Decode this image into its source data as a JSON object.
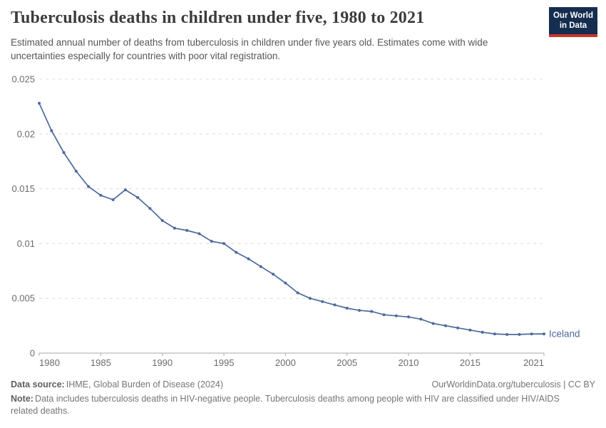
{
  "header": {
    "title": "Tuberculosis deaths in children under five, 1980 to 2021",
    "subtitle": "Estimated annual number of deaths from tuberculosis in children under five years old. Estimates come with wide uncertainties especially for countries with poor vital registration.",
    "logo": {
      "line1": "Our World",
      "line2": "in Data",
      "bg_color": "#152d4f",
      "stripe_color": "#cc342b"
    }
  },
  "chart_data": {
    "type": "line",
    "title": "Tuberculosis deaths in children under five, 1980 to 2021",
    "xlabel": "",
    "ylabel": "",
    "xlim": [
      1980,
      2021
    ],
    "ylim": [
      0,
      0.025
    ],
    "grid": "horizontal-dashed",
    "legend_position": "end-of-line",
    "x": [
      1980,
      1981,
      1982,
      1983,
      1984,
      1985,
      1986,
      1987,
      1988,
      1989,
      1990,
      1991,
      1992,
      1993,
      1994,
      1995,
      1996,
      1997,
      1998,
      1999,
      2000,
      2001,
      2002,
      2003,
      2004,
      2005,
      2006,
      2007,
      2008,
      2009,
      2010,
      2011,
      2012,
      2013,
      2014,
      2015,
      2016,
      2017,
      2018,
      2019,
      2020,
      2021
    ],
    "series": [
      {
        "name": "Iceland",
        "color": "#4c6a9c",
        "values": [
          0.0228,
          0.0203,
          0.0183,
          0.0166,
          0.0152,
          0.0144,
          0.014,
          0.0149,
          0.0142,
          0.0132,
          0.0121,
          0.0114,
          0.0112,
          0.0109,
          0.0102,
          0.01,
          0.0092,
          0.0086,
          0.0079,
          0.0072,
          0.0064,
          0.0055,
          0.005,
          0.0047,
          0.0044,
          0.0041,
          0.0039,
          0.0038,
          0.0035,
          0.0034,
          0.0033,
          0.0031,
          0.0027,
          0.0025,
          0.0023,
          0.0021,
          0.0019,
          0.00175,
          0.0017,
          0.0017,
          0.00175,
          0.00175
        ]
      }
    ],
    "x_ticks": [
      1980,
      1985,
      1990,
      1995,
      2000,
      2005,
      2010,
      2015,
      2021
    ],
    "y_ticks": [
      0,
      0.005,
      0.01,
      0.015,
      0.02,
      0.025
    ],
    "y_tick_labels": [
      "0",
      "0.005",
      "0.01",
      "0.015",
      "0.02",
      "0.025"
    ]
  },
  "footer": {
    "source_label": "Data source:",
    "source_text": "IHME, Global Burden of Disease (2024)",
    "link_text": "OurWorldinData.org/tuberculosis | CC BY",
    "note_label": "Note:",
    "note_text": "Data includes tuberculosis deaths in HIV-negative people. Tuberculosis deaths among people with HIV are classified under HIV/AIDS related deaths."
  },
  "colors": {
    "line": "#4c6a9c",
    "grid": "#dcdcdc",
    "axis": "#a8a8a8",
    "tick_label": "#6b6b6b",
    "title": "#3c3c3c",
    "subtitle": "#565656",
    "footer": "#757575"
  }
}
